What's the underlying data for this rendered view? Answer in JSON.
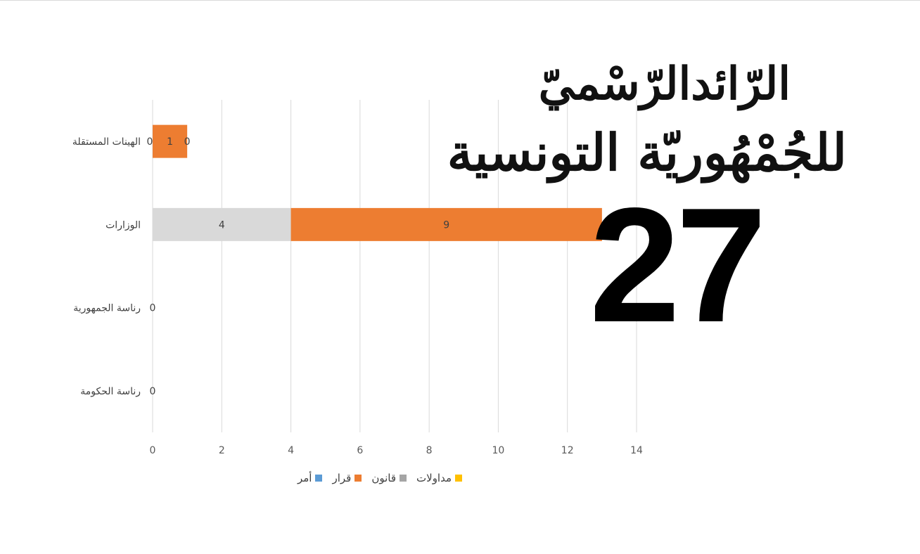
{
  "masthead": {
    "title_line1": "الرّائدالرّسْميّ",
    "title_line2": "للجُمْهُوريّة التونسية",
    "issue_number": "27"
  },
  "legend": [
    {
      "label": "مداولات",
      "color": "#FFC000"
    },
    {
      "label": "قانون",
      "color": "#A5A5A5"
    },
    {
      "label": "قرار",
      "color": "#ED7D31"
    },
    {
      "label": "أمر",
      "color": "#5B9BD5"
    }
  ],
  "chart_data": {
    "type": "bar",
    "orientation": "horizontal",
    "stacked": true,
    "categories": [
      "الهيئات المستقلة",
      "الوزارات",
      "رئاسة الجمهورية",
      "رئاسة الحكومة"
    ],
    "category_labels_rendered": [
      "الهينات المستقلة",
      "الوزارات",
      "رناسة الجمهورية",
      "رناسة الحكومة"
    ],
    "series": [
      {
        "name": "أمر",
        "color": "#5B9BD5",
        "values": [
          0,
          0,
          0,
          0
        ]
      },
      {
        "name": "قانون",
        "color": "#A5A5A5",
        "values": [
          0,
          4,
          0,
          0
        ]
      },
      {
        "name": "قرار",
        "color": "#ED7D31",
        "values": [
          1,
          9,
          0,
          0
        ]
      },
      {
        "name": "مداولات",
        "color": "#FFC000",
        "values": [
          0,
          0,
          0,
          0
        ]
      }
    ],
    "x_ticks": [
      "0",
      "2",
      "4",
      "6",
      "8",
      "10",
      "12",
      "14"
    ],
    "xlim": [
      0,
      14
    ],
    "grid": true,
    "legend_position": "bottom",
    "data_labels": {
      "الهيئات المستقلة": [
        "0",
        "1",
        "0"
      ],
      "الوزارات": [
        "4",
        "9"
      ],
      "رئاسة الجمهورية": [
        "0"
      ],
      "رئاسة الحكومة": [
        "0"
      ]
    }
  }
}
